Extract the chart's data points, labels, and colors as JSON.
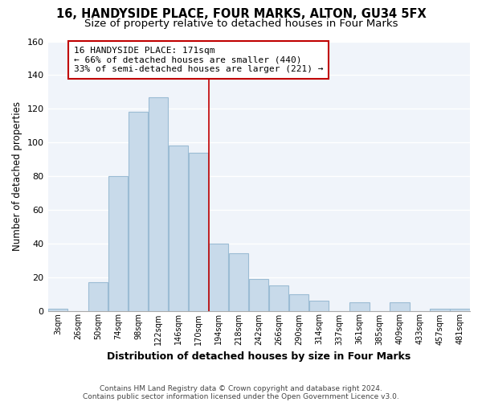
{
  "title": "16, HANDYSIDE PLACE, FOUR MARKS, ALTON, GU34 5FX",
  "subtitle": "Size of property relative to detached houses in Four Marks",
  "xlabel": "Distribution of detached houses by size in Four Marks",
  "ylabel": "Number of detached properties",
  "bin_labels": [
    "3sqm",
    "26sqm",
    "50sqm",
    "74sqm",
    "98sqm",
    "122sqm",
    "146sqm",
    "170sqm",
    "194sqm",
    "218sqm",
    "242sqm",
    "266sqm",
    "290sqm",
    "314sqm",
    "337sqm",
    "361sqm",
    "385sqm",
    "409sqm",
    "433sqm",
    "457sqm",
    "481sqm"
  ],
  "bar_heights": [
    1,
    0,
    17,
    80,
    118,
    127,
    98,
    94,
    40,
    34,
    19,
    15,
    10,
    6,
    0,
    5,
    0,
    5,
    0,
    1,
    1
  ],
  "bar_color": "#c8daea",
  "bar_edge_color": "#9bbcd4",
  "annotation_line1": "16 HANDYSIDE PLACE: 171sqm",
  "annotation_line2": "← 66% of detached houses are smaller (440)",
  "annotation_line3": "33% of semi-detached houses are larger (221) →",
  "vline_color": "#c00000",
  "annotation_box_edge_color": "#c00000",
  "ylim": [
    0,
    160
  ],
  "footer_line1": "Contains HM Land Registry data © Crown copyright and database right 2024.",
  "footer_line2": "Contains public sector information licensed under the Open Government Licence v3.0.",
  "bg_color": "#ffffff",
  "plot_bg_color": "#f0f4fa",
  "grid_color": "#ffffff",
  "title_fontsize": 10.5,
  "subtitle_fontsize": 9.5
}
